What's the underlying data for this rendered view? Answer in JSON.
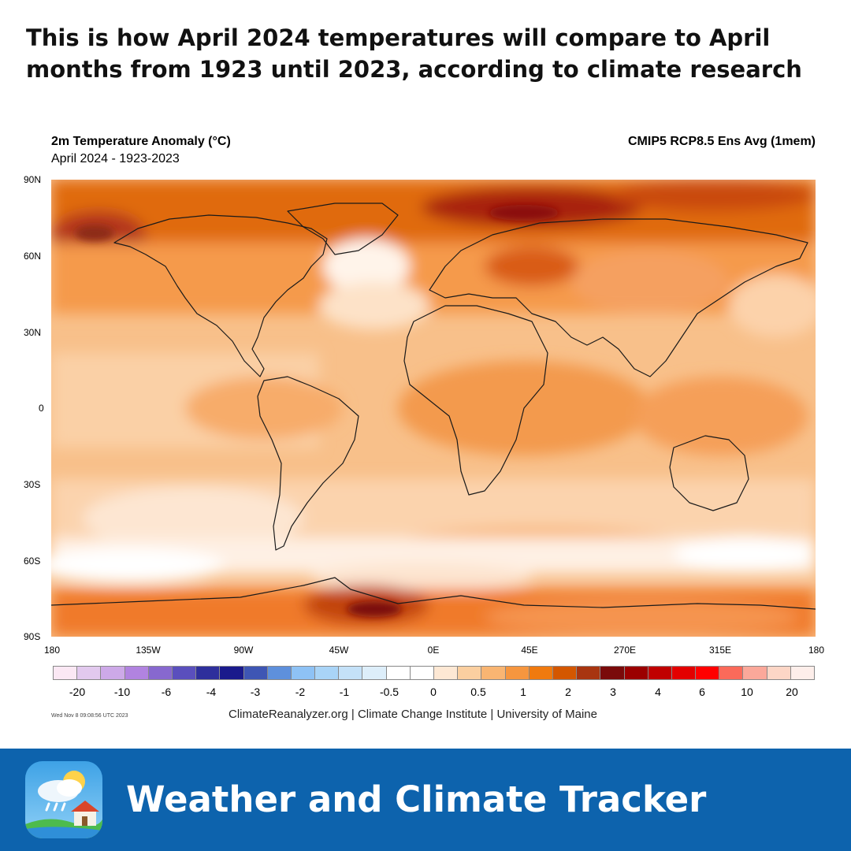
{
  "headline": "This is how April 2024 temperatures will compare to April months from 1923 until 2023, according to climate research",
  "map": {
    "title": "2m Temperature Anomaly (°C)",
    "subtitle": "April 2024 - 1923-2023",
    "model": "CMIP5 RCP8.5 Ens Avg (1mem)",
    "lat_labels": [
      "90N",
      "60N",
      "30N",
      "0",
      "30S",
      "60S",
      "90S"
    ],
    "lon_labels": [
      "180",
      "135W",
      "90W",
      "45W",
      "0E",
      "45E",
      "270E",
      "315E",
      "180"
    ]
  },
  "colorbar": {
    "labels": [
      "-20",
      "-10",
      "-6",
      "-4",
      "-3",
      "-2",
      "-1",
      "-0.5",
      "0",
      "0.5",
      "1",
      "2",
      "3",
      "4",
      "6",
      "10",
      "20"
    ],
    "colors": [
      "#fbe8f4",
      "#e2c9ee",
      "#cda9e8",
      "#b183e0",
      "#8768cf",
      "#5a4fbd",
      "#2e2f9c",
      "#1a1a8c",
      "#3e56b4",
      "#5e90dc",
      "#8ec2f5",
      "#a9d4f7",
      "#c4e1f8",
      "#ddeefa",
      "#ffffff",
      "#ffffff",
      "#fde8d4",
      "#fbcfa0",
      "#f9b572",
      "#f6963f",
      "#f07a0f",
      "#d45700",
      "#a83510",
      "#7a0a0a",
      "#9b0000",
      "#c00000",
      "#e30000",
      "#ff0000",
      "#fb6a5a",
      "#fba89a",
      "#fcd6c6",
      "#fdeeea"
    ]
  },
  "timestamp": "Wed Nov 8 09:08:56 UTC 2023",
  "credit": "ClimateReanalyzer.org | Climate Change Institute | University of Maine",
  "footer": {
    "brand": "Weather and Climate Tracker"
  }
}
